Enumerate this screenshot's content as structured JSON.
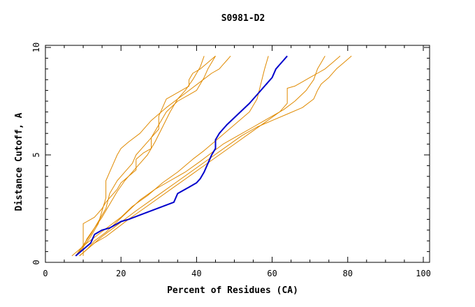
{
  "chart_data": {
    "type": "line",
    "title": "S0981-D2",
    "xlabel": "Percent of Residues (CA)",
    "ylabel": "Distance Cutoff, A",
    "xlim": [
      0,
      100
    ],
    "ylim": [
      0,
      10
    ],
    "xticks": [
      "0",
      "20",
      "40",
      "60",
      "80",
      "100"
    ],
    "yticks": [
      "0",
      "5",
      "10"
    ],
    "grid": false,
    "colors": {
      "highlight": "#0000cc",
      "others": "#e08a00"
    },
    "series": [
      {
        "highlight": true,
        "x": [
          8,
          10,
          12,
          13,
          15,
          17,
          19,
          20,
          22,
          25,
          28,
          31,
          34,
          35,
          38,
          40,
          41,
          42,
          43,
          44,
          45,
          45,
          46,
          48,
          51,
          54,
          57,
          60,
          61,
          62,
          63,
          64
        ],
        "y": [
          0.3,
          0.6,
          0.9,
          1.3,
          1.5,
          1.6,
          1.8,
          1.9,
          2.0,
          2.2,
          2.4,
          2.6,
          2.8,
          3.2,
          3.5,
          3.7,
          3.9,
          4.2,
          4.6,
          5.0,
          5.3,
          5.7,
          6.0,
          6.4,
          6.9,
          7.4,
          8.0,
          8.6,
          9.0,
          9.2,
          9.4,
          9.6
        ]
      },
      {
        "x": [
          8,
          10,
          12,
          14,
          15,
          16,
          16,
          17,
          18,
          19,
          20,
          22,
          25,
          28,
          32,
          35,
          38,
          41,
          44,
          46,
          47,
          48,
          49
        ],
        "y": [
          0.3,
          0.7,
          1.2,
          1.8,
          2.4,
          3.0,
          3.8,
          4.2,
          4.6,
          5.0,
          5.3,
          5.6,
          6.0,
          6.6,
          7.2,
          7.6,
          8.0,
          8.4,
          8.8,
          9.0,
          9.2,
          9.4,
          9.6
        ]
      },
      {
        "x": [
          8,
          10,
          12,
          14,
          16,
          17,
          19,
          21,
          23,
          24,
          26,
          28,
          30,
          32,
          35,
          38,
          40,
          41,
          42,
          43,
          44,
          45
        ],
        "y": [
          0.3,
          0.8,
          1.3,
          1.9,
          2.5,
          3.2,
          3.8,
          4.2,
          4.6,
          5.0,
          5.4,
          5.8,
          6.4,
          7.0,
          7.5,
          7.8,
          8.0,
          8.3,
          8.6,
          9.0,
          9.3,
          9.6
        ]
      },
      {
        "x": [
          8,
          10,
          11,
          13,
          15,
          17,
          19,
          21,
          23,
          25,
          27,
          29,
          31,
          33,
          35,
          37,
          39,
          40,
          41,
          42
        ],
        "y": [
          0.3,
          0.7,
          1.1,
          1.6,
          2.1,
          2.7,
          3.3,
          3.8,
          4.2,
          4.6,
          5.0,
          5.6,
          6.3,
          7.0,
          7.6,
          8.0,
          8.5,
          8.8,
          9.1,
          9.6
        ]
      },
      {
        "x": [
          10,
          10,
          11,
          12,
          13,
          14,
          15,
          16,
          17,
          18,
          19,
          20,
          22,
          24,
          24,
          26,
          28,
          28,
          29,
          30,
          30,
          31,
          32,
          34,
          36,
          38,
          38,
          39,
          41,
          43,
          45
        ],
        "y": [
          0.3,
          1.8,
          1.9,
          2.0,
          2.1,
          2.3,
          2.5,
          2.8,
          3.0,
          3.2,
          3.4,
          3.7,
          4.0,
          4.3,
          4.8,
          5.1,
          5.3,
          5.8,
          6.0,
          6.2,
          6.8,
          7.2,
          7.6,
          7.8,
          8.0,
          8.2,
          8.5,
          8.8,
          9.0,
          9.3,
          9.6
        ]
      },
      {
        "x": [
          7,
          9,
          11,
          14,
          17,
          20,
          23,
          27,
          31,
          35,
          39,
          42,
          46,
          50,
          54,
          56,
          57,
          58,
          59
        ],
        "y": [
          0.3,
          0.6,
          0.9,
          1.3,
          1.7,
          2.1,
          2.6,
          3.1,
          3.7,
          4.2,
          4.8,
          5.2,
          5.8,
          6.4,
          7.0,
          7.6,
          8.3,
          9.0,
          9.6
        ]
      },
      {
        "x": [
          9,
          11,
          13,
          16,
          19,
          22,
          25,
          29,
          33,
          37,
          41,
          44,
          47,
          51,
          55,
          59,
          63,
          66,
          69,
          71,
          72,
          73,
          74
        ],
        "y": [
          0.3,
          0.6,
          1.0,
          1.4,
          1.9,
          2.4,
          2.9,
          3.4,
          3.8,
          4.2,
          4.7,
          5.1,
          5.5,
          5.9,
          6.3,
          6.7,
          7.1,
          7.5,
          8.0,
          8.5,
          9.0,
          9.3,
          9.6
        ]
      },
      {
        "x": [
          9,
          11,
          13,
          16,
          19,
          22,
          26,
          30,
          34,
          38,
          42,
          46,
          50,
          54,
          58,
          62,
          64,
          64,
          66,
          68,
          70,
          72,
          74,
          76,
          78
        ],
        "y": [
          0.3,
          0.6,
          0.9,
          1.2,
          1.6,
          2.0,
          2.5,
          3.0,
          3.5,
          4.0,
          4.5,
          5.0,
          5.5,
          6.0,
          6.5,
          7.0,
          7.4,
          8.1,
          8.2,
          8.4,
          8.6,
          8.8,
          9.0,
          9.3,
          9.6
        ]
      },
      {
        "x": [
          9,
          11,
          13,
          15,
          18,
          21,
          24,
          28,
          32,
          36,
          40,
          44,
          48,
          52,
          56,
          60,
          64,
          68,
          71,
          72,
          73,
          75,
          77,
          79,
          81
        ],
        "y": [
          0.3,
          0.6,
          0.9,
          1.2,
          1.6,
          2.0,
          2.4,
          2.9,
          3.4,
          3.9,
          4.4,
          4.9,
          5.4,
          5.9,
          6.3,
          6.6,
          6.9,
          7.2,
          7.6,
          8.0,
          8.3,
          8.6,
          9.0,
          9.3,
          9.6
        ]
      }
    ]
  }
}
